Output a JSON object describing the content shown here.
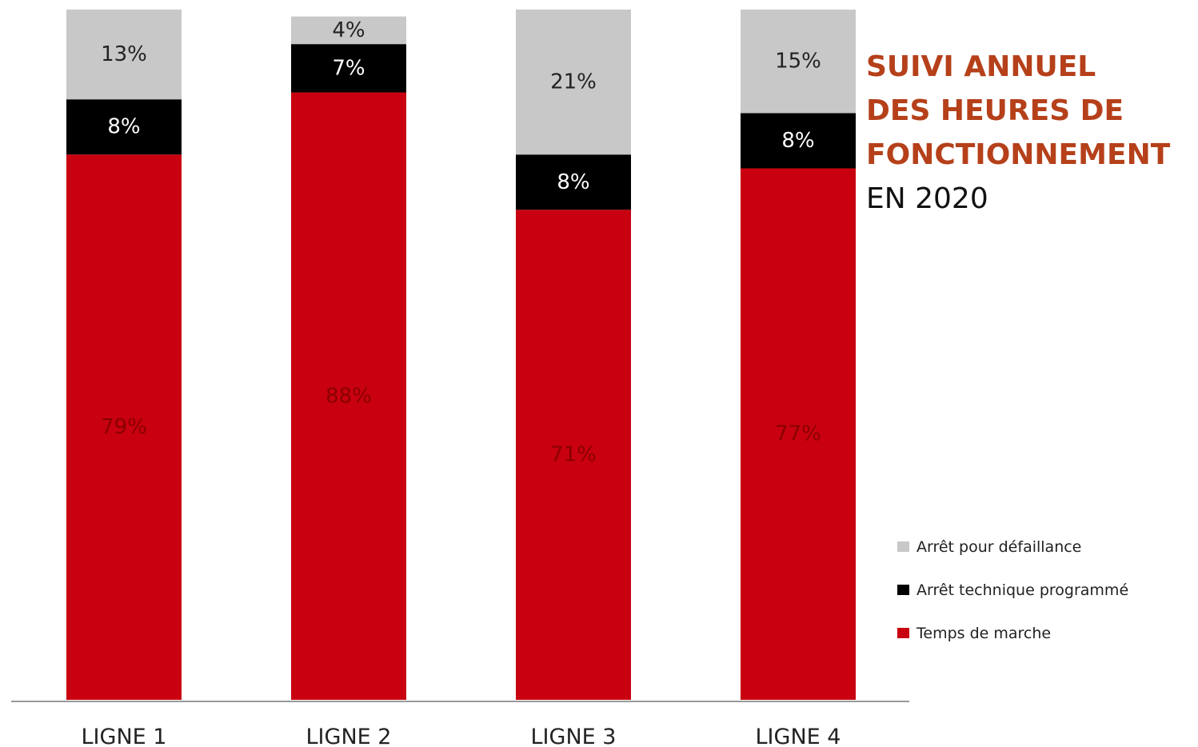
{
  "colors": {
    "defaillance": "#c8c8c8",
    "technique": "#000000",
    "marche": "#c8000f",
    "title_accent": "#b5401a",
    "title_dark": "#111111",
    "axis": "#999999"
  },
  "title": {
    "lines": [
      "SUIVI ANNUEL",
      "DES HEURES DE",
      "FONCTIONNEMENT"
    ],
    "year_line": "EN 2020"
  },
  "legend": [
    {
      "label": "Arrêt pour défaillance",
      "color_key": "defaillance"
    },
    {
      "label": "Arrêt technique programmé",
      "color_key": "technique"
    },
    {
      "label": "Temps de marche",
      "color_key": "marche"
    }
  ],
  "chart_data": {
    "type": "bar",
    "stacked": true,
    "normalized_percent": true,
    "title": "SUIVI ANNUEL DES HEURES DE FONCTIONNEMENT EN 2020",
    "categories": [
      "LIGNE 1",
      "LIGNE 2",
      "LIGNE 3",
      "LIGNE 4"
    ],
    "series": [
      {
        "name": "Temps de marche",
        "values": [
          79,
          88,
          71,
          77
        ],
        "labels": [
          "79%",
          "88%",
          "71%",
          "77%"
        ],
        "color_key": "marche",
        "label_color": "#8a0000"
      },
      {
        "name": "Arrêt technique programmé",
        "values": [
          8,
          7,
          8,
          8
        ],
        "labels": [
          "8%",
          "7%",
          "8%",
          "8%"
        ],
        "color_key": "technique",
        "label_color": "#ffffff"
      },
      {
        "name": "Arrêt pour défaillance",
        "values": [
          13,
          4,
          21,
          15
        ],
        "labels": [
          "13%",
          "4%",
          "21%",
          "15%"
        ],
        "color_key": "defaillance",
        "label_color": "#222222"
      }
    ],
    "ylim": [
      0,
      100
    ],
    "grid": false,
    "legend_position": "bottom-right"
  }
}
